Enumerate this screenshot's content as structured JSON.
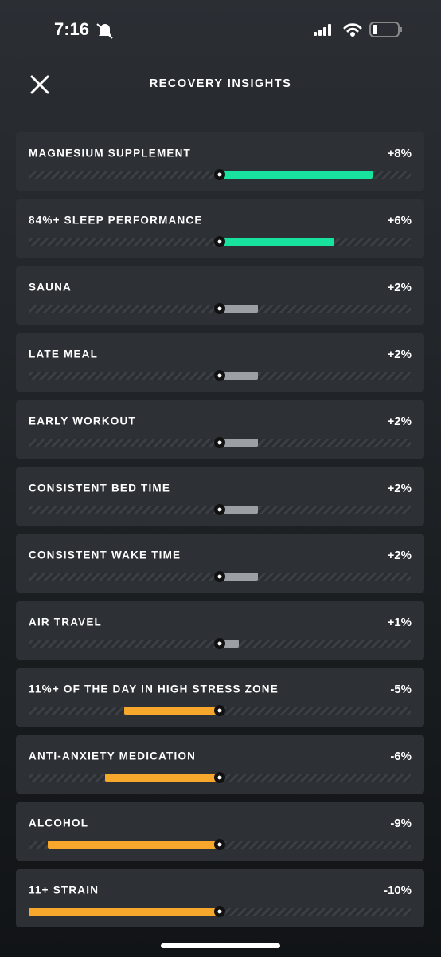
{
  "status_bar": {
    "time": "7:16"
  },
  "header": {
    "title": "RECOVERY INSIGHTS"
  },
  "chart_data": {
    "type": "bar",
    "categories": [
      "MAGNESIUM SUPPLEMENT",
      "84%+ SLEEP PERFORMANCE",
      "SAUNA",
      "LATE MEAL",
      "EARLY WORKOUT",
      "CONSISTENT BED TIME",
      "CONSISTENT WAKE TIME",
      "AIR TRAVEL",
      "11%+ OF THE DAY IN HIGH STRESS ZONE",
      "ANTI-ANXIETY MEDICATION",
      "ALCOHOL",
      "11+ STRAIN"
    ],
    "values": [
      8,
      6,
      2,
      2,
      2,
      2,
      2,
      1,
      -5,
      -6,
      -9,
      -10
    ],
    "value_labels": [
      "+8%",
      "+6%",
      "+2%",
      "+2%",
      "+2%",
      "+2%",
      "+2%",
      "+1%",
      "-5%",
      "-6%",
      "-9%",
      "-10%"
    ],
    "colors": [
      "#17e29e",
      "#17e29e",
      "#9c9fa3",
      "#9c9fa3",
      "#9c9fa3",
      "#9c9fa3",
      "#9c9fa3",
      "#9c9fa3",
      "#f7a72b",
      "#f7a72b",
      "#f7a72b",
      "#f7a72b"
    ],
    "xlim": [
      -10,
      10
    ]
  }
}
